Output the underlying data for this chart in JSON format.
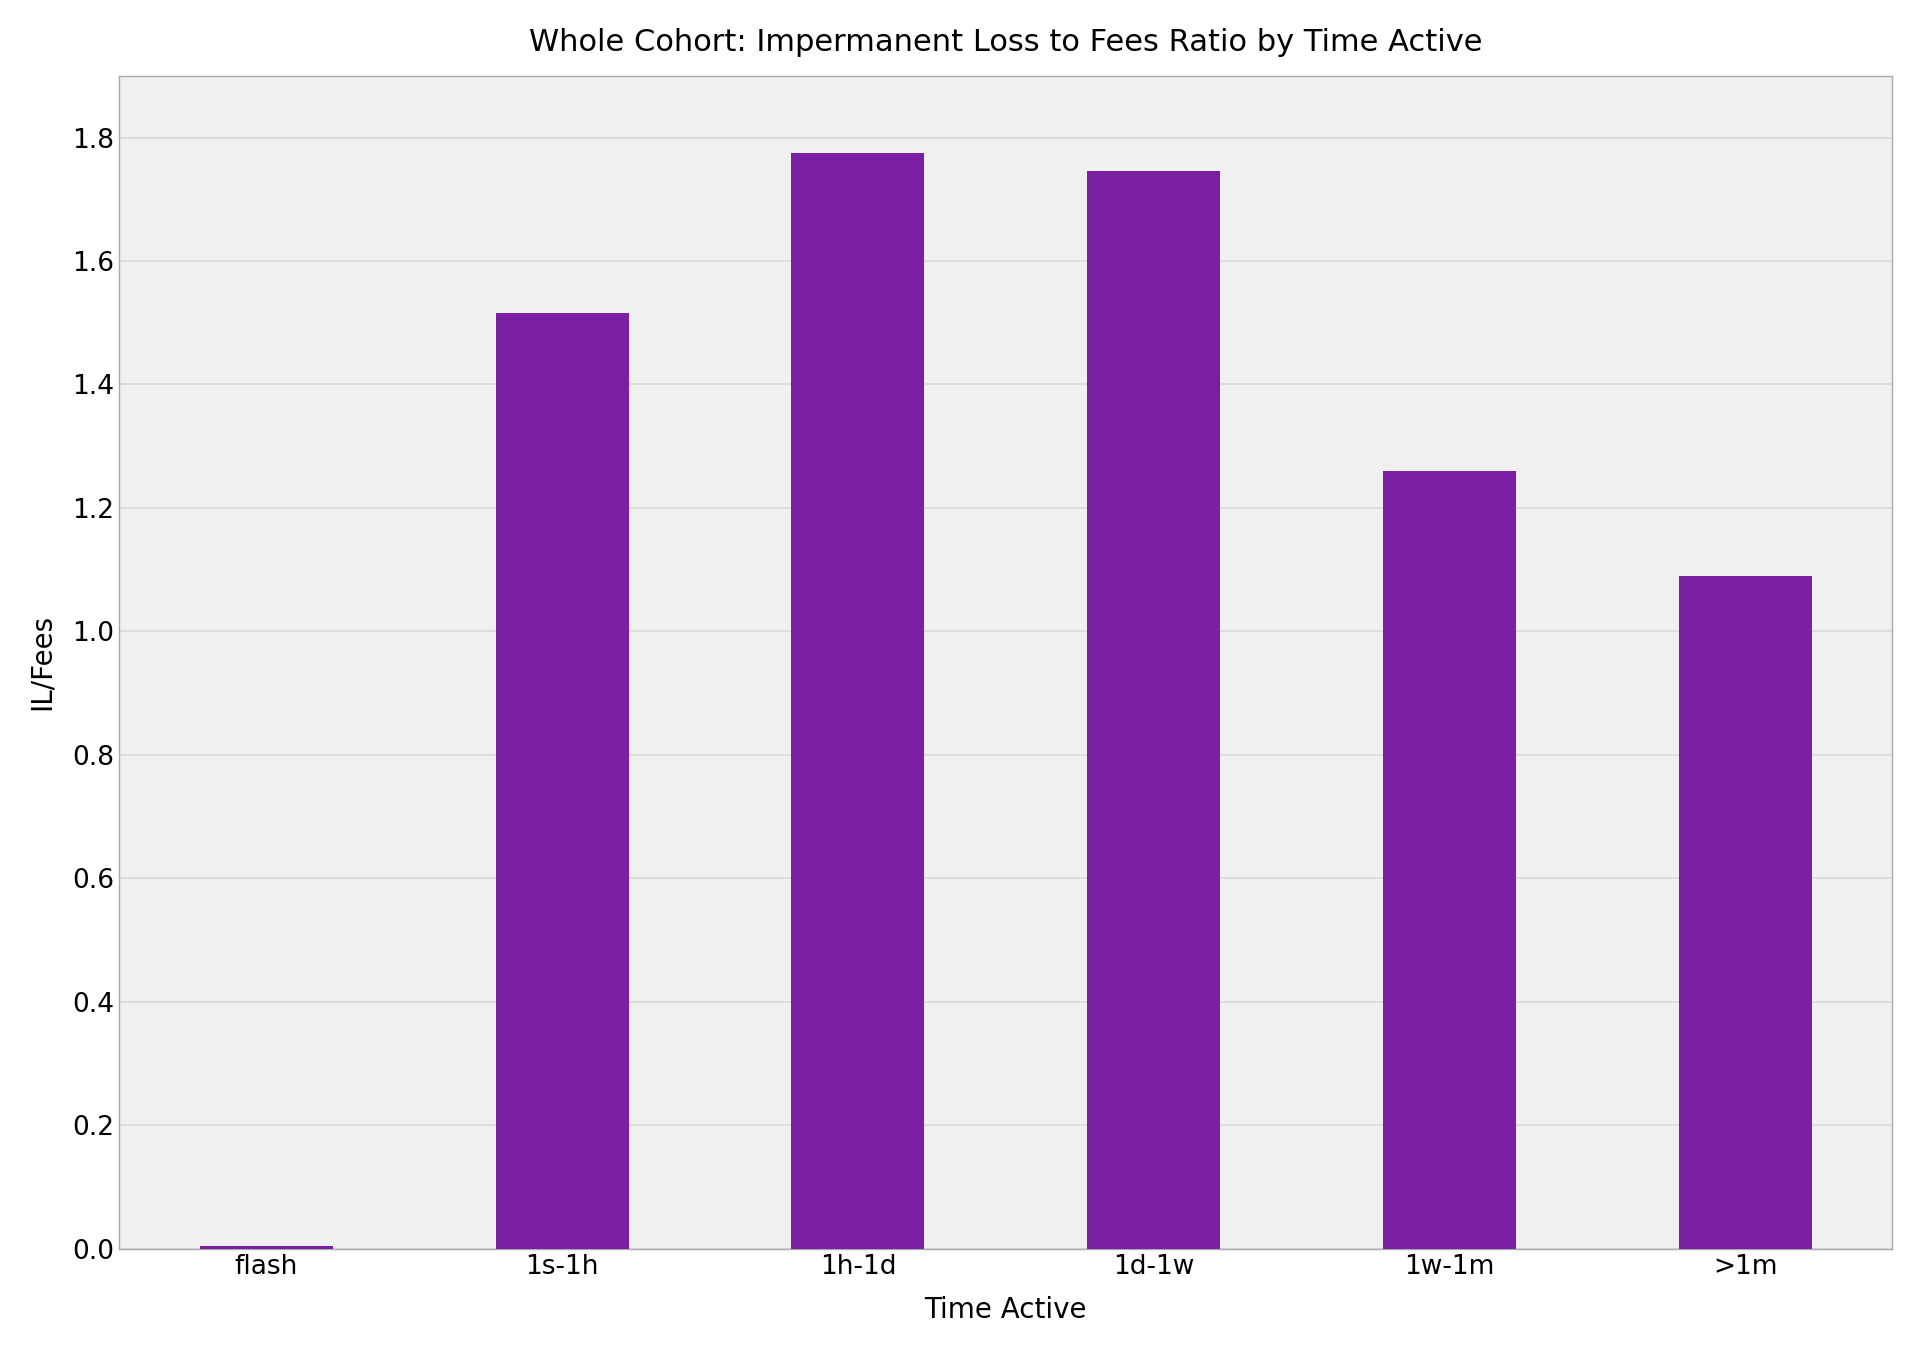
{
  "title": "Whole Cohort: Impermanent Loss to Fees Ratio by Time Active",
  "xlabel": "Time Active",
  "ylabel": "IL/Fees",
  "categories": [
    "flash",
    "1s-1h",
    "1h-1d",
    "1d-1w",
    "1w-1m",
    ">1m"
  ],
  "values": [
    0.005,
    1.515,
    1.775,
    1.745,
    1.26,
    1.09
  ],
  "bar_color": "#7B1FA2",
  "ylim": [
    0,
    1.9
  ],
  "yticks": [
    0.0,
    0.2,
    0.4,
    0.6,
    0.8,
    1.0,
    1.2,
    1.4,
    1.6,
    1.8
  ],
  "background_color": "#ffffff",
  "plot_bg_color": "#f0f0f0",
  "grid_color": "#d8d8d8",
  "title_fontsize": 22,
  "label_fontsize": 20,
  "tick_fontsize": 19,
  "bar_width": 0.45,
  "spine_color": "#aaaaaa"
}
